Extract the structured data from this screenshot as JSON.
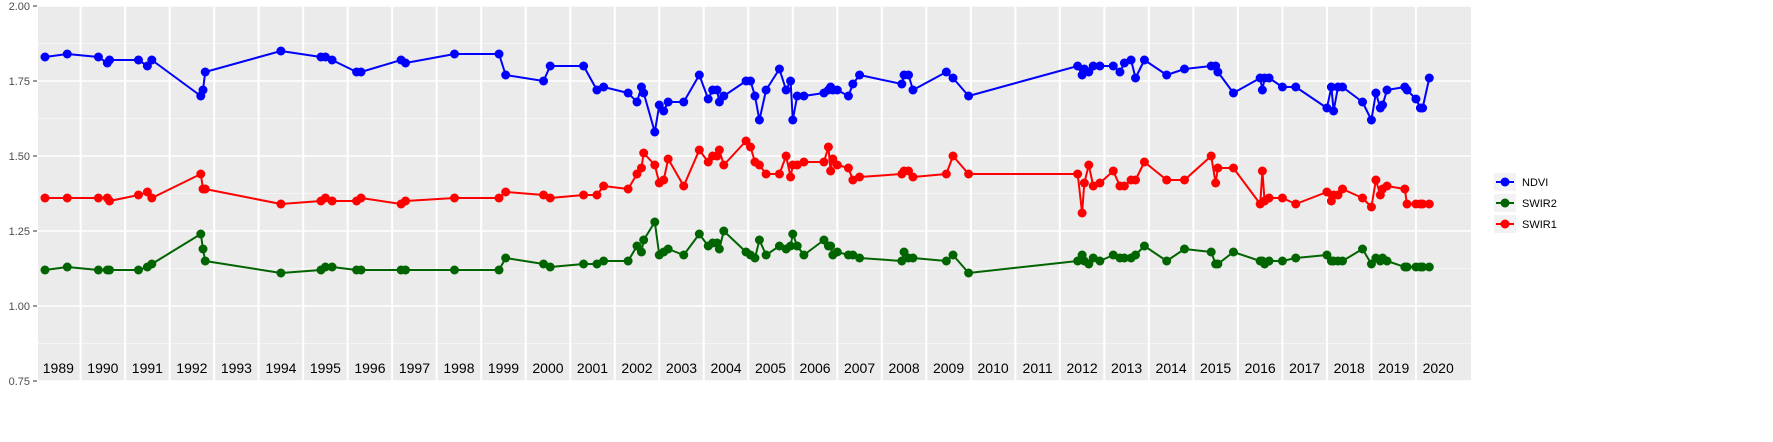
{
  "chart_data": {
    "type": "line",
    "title": "",
    "xlabel": "",
    "ylabel": "",
    "xlim": [
      1988.7,
      2020.4
    ],
    "ylim": [
      0.75,
      2.0
    ],
    "y_ticks": [
      "0.75",
      "1.00",
      "1.25",
      "1.50",
      "1.75",
      "2.00"
    ],
    "y_tick_values": [
      0.75,
      1.0,
      1.25,
      1.5,
      1.75,
      2.0
    ],
    "year_labels": [
      "1989",
      "1990",
      "1991",
      "1992",
      "1993",
      "1994",
      "1995",
      "1996",
      "1997",
      "1998",
      "1999",
      "2000",
      "2001",
      "2002",
      "2003",
      "2004",
      "2005",
      "2006",
      "2007",
      "2008",
      "2009",
      "2010",
      "2011",
      "2012",
      "2013",
      "2014",
      "2015",
      "2016",
      "2017",
      "2018",
      "2019",
      "2020"
    ],
    "year_label_positions": [
      1989,
      1990,
      1991,
      1992,
      1993,
      1994,
      1995,
      1996,
      1997,
      1998,
      1999,
      2000,
      2001,
      2002,
      2003,
      2004,
      2005,
      2006,
      2007,
      2008,
      2009,
      2010,
      2011,
      2012,
      2013,
      2014,
      2015,
      2016,
      2017,
      2018,
      2019,
      2020
    ],
    "grid": true,
    "legend_position": "right",
    "series": [
      {
        "name": "NDVI",
        "color": "#0000ff",
        "x": [
          1988.7,
          1989.2,
          1989.9,
          1990.1,
          1990.15,
          1990.8,
          1991,
          1991.1,
          1992.2,
          1992.25,
          1992.3,
          1994,
          1994.9,
          1995,
          1995.15,
          1995.7,
          1995.8,
          1996.7,
          1996.8,
          1997.9,
          1998.9,
          1999.05,
          1999.9,
          2000.05,
          2000.8,
          2001.1,
          2001.25,
          2001.8,
          2002,
          2002.1,
          2002.15,
          2002.4,
          2002.5,
          2002.6,
          2002.7,
          2003.05,
          2003.4,
          2003.6,
          2003.7,
          2003.8,
          2003.85,
          2003.95,
          2004.45,
          2004.55,
          2004.65,
          2004.75,
          2004.9,
          2005.2,
          2005.35,
          2005.45,
          2005.5,
          2005.6,
          2005.75,
          2006.2,
          2006.3,
          2006.35,
          2006.4,
          2006.5,
          2006.75,
          2006.85,
          2007,
          2007.95,
          2008,
          2008.1,
          2008.2,
          2008.95,
          2009.1,
          2009.45,
          2011.9,
          2012,
          2012.05,
          2012.15,
          2012.25,
          2012.4,
          2012.7,
          2012.85,
          2012.95,
          2013.1,
          2013.2,
          2013.4,
          2013.9,
          2014.3,
          2014.9,
          2015,
          2015.05,
          2015.4,
          2016,
          2016.05,
          2016.1,
          2016.2,
          2016.5,
          2016.8,
          2017.5,
          2017.6,
          2017.65,
          2017.75,
          2017.85,
          2018.3,
          2018.5,
          2018.6,
          2018.7,
          2018.75,
          2018.85,
          2019.25,
          2019.3,
          2019.5,
          2019.6,
          2019.65,
          2019.8
        ],
        "values": [
          1.83,
          1.84,
          1.83,
          1.81,
          1.82,
          1.82,
          1.8,
          1.82,
          1.7,
          1.72,
          1.78,
          1.85,
          1.83,
          1.83,
          1.82,
          1.78,
          1.78,
          1.82,
          1.81,
          1.84,
          1.84,
          1.77,
          1.75,
          1.8,
          1.8,
          1.72,
          1.73,
          1.71,
          1.68,
          1.73,
          1.71,
          1.58,
          1.67,
          1.65,
          1.68,
          1.68,
          1.77,
          1.69,
          1.72,
          1.72,
          1.68,
          1.7,
          1.75,
          1.75,
          1.7,
          1.62,
          1.72,
          1.79,
          1.72,
          1.75,
          1.62,
          1.7,
          1.7,
          1.71,
          1.72,
          1.73,
          1.72,
          1.72,
          1.7,
          1.74,
          1.77,
          1.74,
          1.77,
          1.77,
          1.72,
          1.78,
          1.76,
          1.7,
          1.8,
          1.77,
          1.79,
          1.78,
          1.8,
          1.8,
          1.8,
          1.78,
          1.81,
          1.82,
          1.76,
          1.82,
          1.77,
          1.79,
          1.8,
          1.8,
          1.78,
          1.71,
          1.76,
          1.72,
          1.76,
          1.76,
          1.73,
          1.73,
          1.66,
          1.73,
          1.65,
          1.73,
          1.73,
          1.68,
          1.62,
          1.71,
          1.66,
          1.67,
          1.72,
          1.73,
          1.72,
          1.69,
          1.66,
          1.66,
          1.76
        ]
      },
      {
        "name": "SWIR2",
        "color": "#006400",
        "x": [
          1988.7,
          1989.2,
          1989.9,
          1990.1,
          1990.15,
          1990.8,
          1991,
          1991.1,
          1992.2,
          1992.25,
          1992.3,
          1994,
          1994.9,
          1995,
          1995.15,
          1995.7,
          1995.8,
          1996.7,
          1996.8,
          1997.9,
          1998.9,
          1999.05,
          1999.9,
          2000.05,
          2000.8,
          2001.1,
          2001.25,
          2001.8,
          2002,
          2002.1,
          2002.15,
          2002.4,
          2002.5,
          2002.6,
          2002.7,
          2003.05,
          2003.4,
          2003.6,
          2003.7,
          2003.8,
          2003.85,
          2003.95,
          2004.45,
          2004.55,
          2004.65,
          2004.75,
          2004.9,
          2005.2,
          2005.35,
          2005.45,
          2005.5,
          2005.6,
          2005.75,
          2006.2,
          2006.3,
          2006.35,
          2006.4,
          2006.5,
          2006.75,
          2006.85,
          2007,
          2007.95,
          2008,
          2008.1,
          2008.2,
          2008.95,
          2009.1,
          2009.45,
          2011.9,
          2012,
          2012.05,
          2012.15,
          2012.25,
          2012.4,
          2012.7,
          2012.85,
          2012.95,
          2013.1,
          2013.2,
          2013.4,
          2013.9,
          2014.3,
          2014.9,
          2015,
          2015.05,
          2015.4,
          2016,
          2016.05,
          2016.1,
          2016.2,
          2016.5,
          2016.8,
          2017.5,
          2017.6,
          2017.65,
          2017.75,
          2017.85,
          2018.3,
          2018.5,
          2018.6,
          2018.7,
          2018.75,
          2018.85,
          2019.25,
          2019.3,
          2019.5,
          2019.6,
          2019.65,
          2019.8
        ],
        "values": [
          1.12,
          1.13,
          1.12,
          1.12,
          1.12,
          1.12,
          1.13,
          1.14,
          1.24,
          1.19,
          1.15,
          1.11,
          1.12,
          1.13,
          1.13,
          1.12,
          1.12,
          1.12,
          1.12,
          1.12,
          1.12,
          1.16,
          1.14,
          1.13,
          1.14,
          1.14,
          1.15,
          1.15,
          1.2,
          1.18,
          1.22,
          1.28,
          1.17,
          1.18,
          1.19,
          1.17,
          1.24,
          1.2,
          1.21,
          1.21,
          1.19,
          1.25,
          1.18,
          1.17,
          1.16,
          1.22,
          1.17,
          1.2,
          1.19,
          1.2,
          1.24,
          1.2,
          1.17,
          1.22,
          1.2,
          1.2,
          1.17,
          1.18,
          1.17,
          1.17,
          1.16,
          1.15,
          1.18,
          1.16,
          1.16,
          1.15,
          1.17,
          1.11,
          1.15,
          1.17,
          1.15,
          1.14,
          1.16,
          1.15,
          1.17,
          1.16,
          1.16,
          1.16,
          1.17,
          1.2,
          1.15,
          1.19,
          1.18,
          1.14,
          1.14,
          1.18,
          1.15,
          1.15,
          1.14,
          1.15,
          1.15,
          1.16,
          1.17,
          1.15,
          1.15,
          1.15,
          1.15,
          1.19,
          1.14,
          1.16,
          1.15,
          1.16,
          1.15,
          1.13,
          1.13,
          1.13,
          1.13,
          1.13,
          1.13
        ]
      },
      {
        "name": "SWIR1",
        "color": "#ff0000",
        "x": [
          1988.7,
          1989.2,
          1989.9,
          1990.1,
          1990.15,
          1990.8,
          1991,
          1991.1,
          1992.2,
          1992.25,
          1992.3,
          1994,
          1994.9,
          1995,
          1995.15,
          1995.7,
          1995.8,
          1996.7,
          1996.8,
          1997.9,
          1998.9,
          1999.05,
          1999.9,
          2000.05,
          2000.8,
          2001.1,
          2001.25,
          2001.8,
          2002,
          2002.1,
          2002.15,
          2002.4,
          2002.5,
          2002.6,
          2002.7,
          2003.05,
          2003.4,
          2003.6,
          2003.7,
          2003.8,
          2003.85,
          2003.95,
          2004.45,
          2004.55,
          2004.65,
          2004.75,
          2004.9,
          2005.2,
          2005.35,
          2005.45,
          2005.5,
          2005.6,
          2005.75,
          2006.2,
          2006.3,
          2006.35,
          2006.4,
          2006.5,
          2006.75,
          2006.85,
          2007,
          2007.95,
          2008,
          2008.1,
          2008.2,
          2008.95,
          2009.1,
          2009.45,
          2011.9,
          2012,
          2012.05,
          2012.15,
          2012.25,
          2012.4,
          2012.7,
          2012.85,
          2012.95,
          2013.1,
          2013.2,
          2013.4,
          2013.9,
          2014.3,
          2014.9,
          2015,
          2015.05,
          2015.4,
          2016,
          2016.05,
          2016.1,
          2016.2,
          2016.5,
          2016.8,
          2017.5,
          2017.6,
          2017.65,
          2017.75,
          2017.85,
          2018.3,
          2018.5,
          2018.6,
          2018.7,
          2018.75,
          2018.85,
          2019.25,
          2019.3,
          2019.5,
          2019.6,
          2019.65,
          2019.8
        ],
        "values": [
          1.36,
          1.36,
          1.36,
          1.36,
          1.35,
          1.37,
          1.38,
          1.36,
          1.44,
          1.39,
          1.39,
          1.34,
          1.35,
          1.36,
          1.35,
          1.35,
          1.36,
          1.34,
          1.35,
          1.36,
          1.36,
          1.38,
          1.37,
          1.36,
          1.37,
          1.37,
          1.4,
          1.39,
          1.44,
          1.46,
          1.51,
          1.47,
          1.41,
          1.42,
          1.49,
          1.4,
          1.52,
          1.48,
          1.5,
          1.5,
          1.52,
          1.47,
          1.55,
          1.53,
          1.48,
          1.47,
          1.44,
          1.44,
          1.5,
          1.43,
          1.47,
          1.47,
          1.48,
          1.48,
          1.53,
          1.45,
          1.49,
          1.47,
          1.46,
          1.42,
          1.43,
          1.44,
          1.45,
          1.45,
          1.43,
          1.44,
          1.5,
          1.44,
          1.44,
          1.31,
          1.41,
          1.47,
          1.4,
          1.41,
          1.45,
          1.4,
          1.4,
          1.42,
          1.42,
          1.48,
          1.42,
          1.42,
          1.5,
          1.41,
          1.46,
          1.46,
          1.34,
          1.45,
          1.35,
          1.36,
          1.36,
          1.34,
          1.38,
          1.35,
          1.37,
          1.37,
          1.39,
          1.36,
          1.33,
          1.42,
          1.37,
          1.39,
          1.4,
          1.39,
          1.34,
          1.34,
          1.34,
          1.34,
          1.34
        ]
      }
    ]
  }
}
